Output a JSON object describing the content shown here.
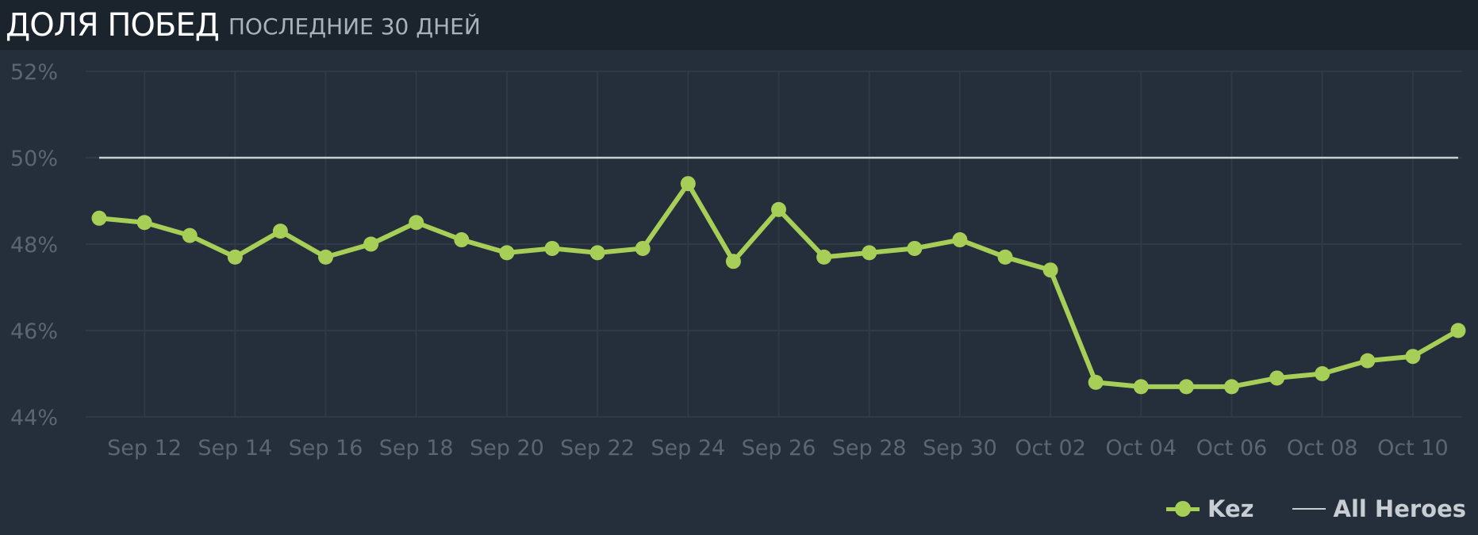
{
  "header": {
    "title": "ДОЛЯ ПОБЕД",
    "subtitle": "ПОСЛЕДНИЕ 30 ДНЕЙ"
  },
  "legend": {
    "series_label": "Kez",
    "baseline_label": "All Heroes"
  },
  "colors": {
    "series": "#a7cf57",
    "baseline": "#c9ced4",
    "grid": "#2f3a46",
    "tick": "#5b6672",
    "background": "#242f3b",
    "header": "#1b232d"
  },
  "chart_data": {
    "type": "line",
    "x": [
      "2024-09-11",
      "2024-09-12",
      "2024-09-13",
      "2024-09-14",
      "2024-09-15",
      "2024-09-16",
      "2024-09-17",
      "2024-09-18",
      "2024-09-19",
      "2024-09-20",
      "2024-09-21",
      "2024-09-22",
      "2024-09-23",
      "2024-09-24",
      "2024-09-25",
      "2024-09-26",
      "2024-09-27",
      "2024-09-28",
      "2024-09-29",
      "2024-09-30",
      "2024-10-01",
      "2024-10-02",
      "2024-10-03",
      "2024-10-04",
      "2024-10-05",
      "2024-10-06",
      "2024-10-07",
      "2024-10-08",
      "2024-10-09",
      "2024-10-10",
      "2024-10-11"
    ],
    "x_tick_labels": [
      "Sep 12",
      "Sep 14",
      "Sep 16",
      "Sep 18",
      "Sep 20",
      "Sep 22",
      "Sep 24",
      "Sep 26",
      "Sep 28",
      "Sep 30",
      "Oct 02",
      "Oct 04",
      "Oct 06",
      "Oct 08",
      "Oct 10"
    ],
    "y_tick_labels": [
      "52%",
      "50%",
      "48%",
      "46%",
      "44%"
    ],
    "y_ticks": [
      52,
      50,
      48,
      46,
      44
    ],
    "ylim": [
      44,
      52
    ],
    "grid": true,
    "legend_position": "bottom-right",
    "series": [
      {
        "name": "Kez",
        "values": [
          48.6,
          48.5,
          48.2,
          47.7,
          48.3,
          47.7,
          48.0,
          48.5,
          48.1,
          47.8,
          47.9,
          47.8,
          47.9,
          49.4,
          47.6,
          48.8,
          47.7,
          47.8,
          47.9,
          48.1,
          47.7,
          47.4,
          44.8,
          44.7,
          44.7,
          44.7,
          44.9,
          45.0,
          45.3,
          45.4,
          46.0
        ]
      },
      {
        "name": "All Heroes",
        "values": [
          50.0,
          50.0,
          50.0,
          50.0,
          50.0,
          50.0,
          50.0,
          50.0,
          50.0,
          50.0,
          50.0,
          50.0,
          50.0,
          50.0,
          50.0,
          50.0,
          50.0,
          50.0,
          50.0,
          50.0,
          50.0,
          50.0,
          50.0,
          50.0,
          50.0,
          50.0,
          50.0,
          50.0,
          50.0,
          50.0,
          50.0
        ]
      }
    ]
  }
}
